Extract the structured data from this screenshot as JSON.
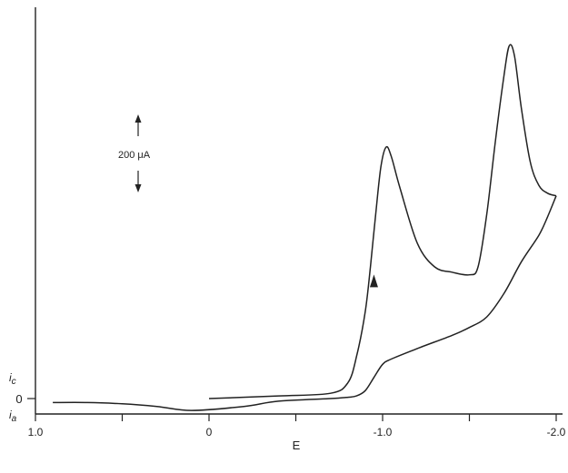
{
  "chart_data": {
    "type": "line",
    "title": "",
    "xlabel": "E",
    "ylabel": "",
    "x_axis_reversed": true,
    "xlim": [
      1.0,
      -2.0
    ],
    "xticks": [
      1.0,
      0.5,
      0,
      -0.5,
      -1.0,
      -1.5,
      -2.0
    ],
    "xtick_labels": [
      "1.0",
      "",
      "0",
      "",
      "-1.0",
      "",
      "-2.0"
    ],
    "y_zero_label": "0",
    "y_labels": {
      "cathodic": "i",
      "cathodic_sub": "c",
      "anodic": "i",
      "anodic_sub": "a"
    },
    "ylim_uA": [
      -100,
      1390
    ],
    "scale_bar": {
      "label": "200 μA",
      "value_uA": 200
    },
    "sweep_direction_arrow": {
      "E": -0.95,
      "i_uA": 440
    },
    "grid": false,
    "series": [
      {
        "name": "",
        "x": [
          0.0,
          -0.4,
          -0.7,
          -0.8,
          -0.85,
          -0.9,
          -0.93,
          -0.96,
          -0.99,
          -1.02,
          -1.05,
          -1.1,
          -1.2,
          -1.3,
          -1.4,
          -1.5,
          -1.55,
          -1.6,
          -1.65,
          -1.7,
          -1.73,
          -1.76,
          -1.8,
          -1.85,
          -1.9,
          -1.95,
          -2.0
        ],
        "y": [
          0,
          10,
          20,
          60,
          160,
          330,
          500,
          700,
          880,
          955,
          920,
          800,
          590,
          500,
          480,
          470,
          500,
          700,
          980,
          1230,
          1340,
          1300,
          1100,
          900,
          810,
          780,
          770
        ]
      },
      {
        "name": "",
        "x": [
          -2.0,
          -1.95,
          -1.9,
          -1.8,
          -1.7,
          -1.6,
          -1.5,
          -1.4,
          -1.2,
          -1.05,
          -1.0,
          -0.95,
          -0.9,
          -0.85,
          -0.8,
          -0.7,
          -0.4,
          -0.2,
          0.1,
          0.3,
          0.5,
          0.7,
          0.9
        ],
        "y": [
          770,
          690,
          620,
          520,
          400,
          310,
          270,
          240,
          190,
          150,
          130,
          80,
          30,
          10,
          5,
          0,
          -10,
          -30,
          -45,
          -30,
          -20,
          -15,
          -15
        ]
      }
    ]
  }
}
